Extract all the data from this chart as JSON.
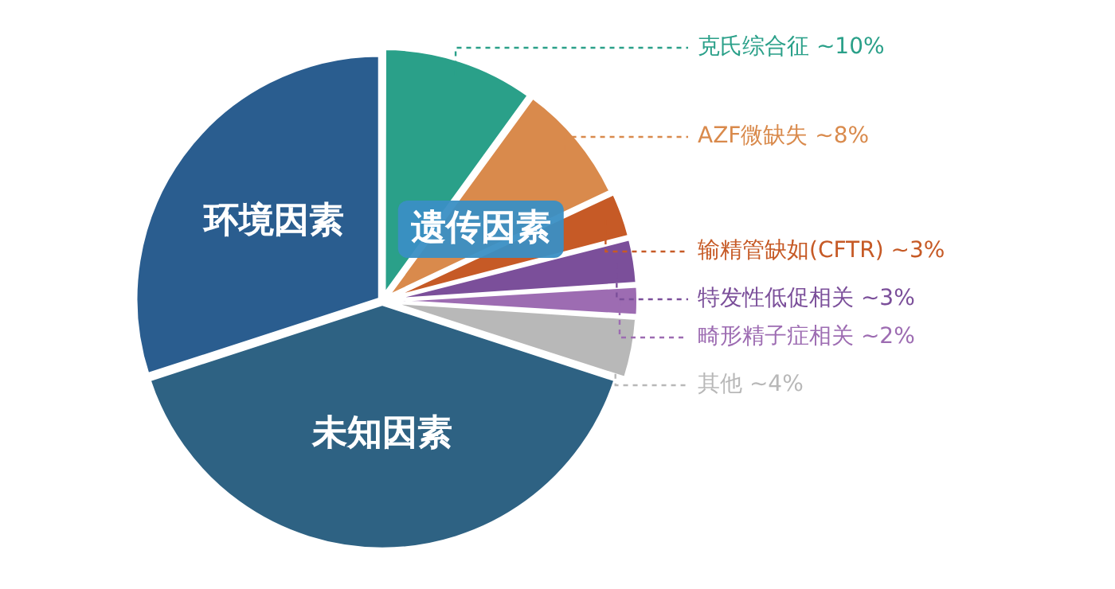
{
  "chart_data": {
    "type": "pie",
    "categories": [
      "克氏综合征 ~10%",
      "AZF微缺失 ~8%",
      "输精管缺如(CFTR) ~3%",
      "特发性低促相关 ~3%",
      "畸形精子症相关 ~2%",
      "其他 ~4%",
      "未知因素",
      "环境因素"
    ],
    "values": [
      10,
      8,
      3,
      3,
      2,
      4,
      40,
      30
    ],
    "colors": [
      "#2aa089",
      "#d98a4c",
      "#c65a26",
      "#7b4f9a",
      "#9d6cb2",
      "#b8b8b8",
      "#2e6283",
      "#2a5d8f"
    ],
    "annotations": [
      "遗传因素"
    ]
  }
}
